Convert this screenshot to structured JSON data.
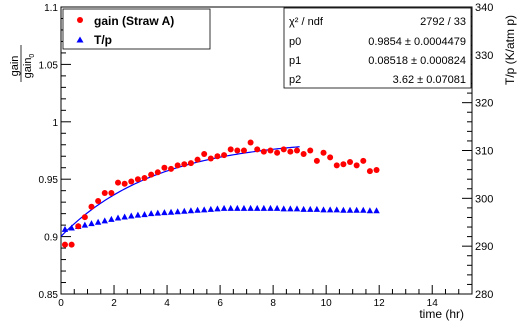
{
  "chart_data": {
    "type": "scatter",
    "xlabel": "time (hr)",
    "ylabel_left": {
      "num": "gain",
      "den": "gain",
      "sub": "0"
    },
    "ylabel_right": "T/p (K/atm p)",
    "xlim": [
      0,
      15.5
    ],
    "ylim_left": [
      0.85,
      1.1
    ],
    "ylim_right": [
      280,
      340
    ],
    "x_ticks": [
      "0",
      "2",
      "4",
      "6",
      "8",
      "10",
      "12",
      "14"
    ],
    "y_left_ticks": [
      "0.85",
      "0.9",
      "0.95",
      "1",
      "1.05",
      "1.1"
    ],
    "y_right_ticks": [
      "280",
      "290",
      "300",
      "310",
      "320",
      "330",
      "340"
    ],
    "legend": {
      "placement": "top-left",
      "entries": [
        "gain (Straw A)",
        "T/p"
      ]
    },
    "fit_box": {
      "placement": "top-right",
      "rows": [
        {
          "label": "χ² / ndf",
          "value": "2792 / 33"
        },
        {
          "label": "p0",
          "value": "0.9854 ± 0.0004479"
        },
        {
          "label": "p1",
          "value": "0.08518 ± 0.000824"
        },
        {
          "label": "p2",
          "value": "3.62 ± 0.07081"
        }
      ]
    },
    "series": [
      {
        "name": "gain (Straw A)",
        "color": "#ff0000",
        "marker": "circle",
        "axis": "left",
        "x": [
          0.15,
          0.4,
          0.65,
          0.9,
          1.15,
          1.4,
          1.65,
          1.9,
          2.15,
          2.4,
          2.65,
          2.9,
          3.15,
          3.4,
          3.65,
          3.9,
          4.15,
          4.4,
          4.65,
          4.9,
          5.15,
          5.4,
          5.65,
          5.9,
          6.15,
          6.4,
          6.65,
          6.9,
          7.15,
          7.4,
          7.65,
          7.9,
          8.15,
          8.4,
          8.65,
          8.9,
          9.15,
          9.4,
          9.65,
          9.9,
          10.15,
          10.4,
          10.65,
          10.9,
          11.15,
          11.4,
          11.65,
          11.9
        ],
        "y": [
          0.893,
          0.893,
          0.909,
          0.917,
          0.926,
          0.931,
          0.938,
          0.938,
          0.947,
          0.946,
          0.948,
          0.95,
          0.951,
          0.954,
          0.956,
          0.96,
          0.959,
          0.962,
          0.963,
          0.964,
          0.967,
          0.972,
          0.968,
          0.97,
          0.971,
          0.976,
          0.975,
          0.975,
          0.982,
          0.976,
          0.974,
          0.975,
          0.973,
          0.976,
          0.974,
          0.975,
          0.972,
          0.975,
          0.966,
          0.973,
          0.969,
          0.962,
          0.963,
          0.965,
          0.962,
          0.966,
          0.957,
          0.958
        ]
      },
      {
        "name": "T/p",
        "color": "#0000ff",
        "marker": "triangle",
        "axis": "right",
        "x": [
          0.15,
          0.4,
          0.65,
          0.9,
          1.15,
          1.4,
          1.65,
          1.9,
          2.15,
          2.4,
          2.65,
          2.9,
          3.15,
          3.4,
          3.65,
          3.9,
          4.15,
          4.4,
          4.65,
          4.9,
          5.15,
          5.4,
          5.65,
          5.9,
          6.15,
          6.4,
          6.65,
          6.9,
          7.15,
          7.4,
          7.65,
          7.9,
          8.15,
          8.4,
          8.65,
          8.9,
          9.15,
          9.4,
          9.65,
          9.9,
          10.15,
          10.4,
          10.65,
          10.9,
          11.15,
          11.4,
          11.65,
          11.9
        ],
        "y": [
          293.5,
          293.8,
          294.1,
          294.4,
          294.7,
          295.0,
          295.3,
          295.6,
          295.9,
          296.1,
          296.3,
          296.5,
          296.6,
          296.8,
          296.9,
          297.0,
          297.1,
          297.2,
          297.3,
          297.4,
          297.5,
          297.6,
          297.7,
          297.8,
          297.9,
          297.9,
          297.9,
          297.9,
          297.9,
          297.9,
          297.9,
          297.9,
          297.9,
          297.8,
          297.8,
          297.8,
          297.7,
          297.7,
          297.7,
          297.6,
          297.6,
          297.6,
          297.5,
          297.5,
          297.5,
          297.5,
          297.4,
          297.4
        ]
      }
    ],
    "fit": {
      "color": "#0000ff",
      "axis": "left",
      "formula": "p0 - p1*exp(-t/p2)",
      "params": {
        "p0": 0.9854,
        "p1": 0.08518,
        "p2": 3.62
      },
      "x_range": [
        0,
        9
      ]
    }
  }
}
